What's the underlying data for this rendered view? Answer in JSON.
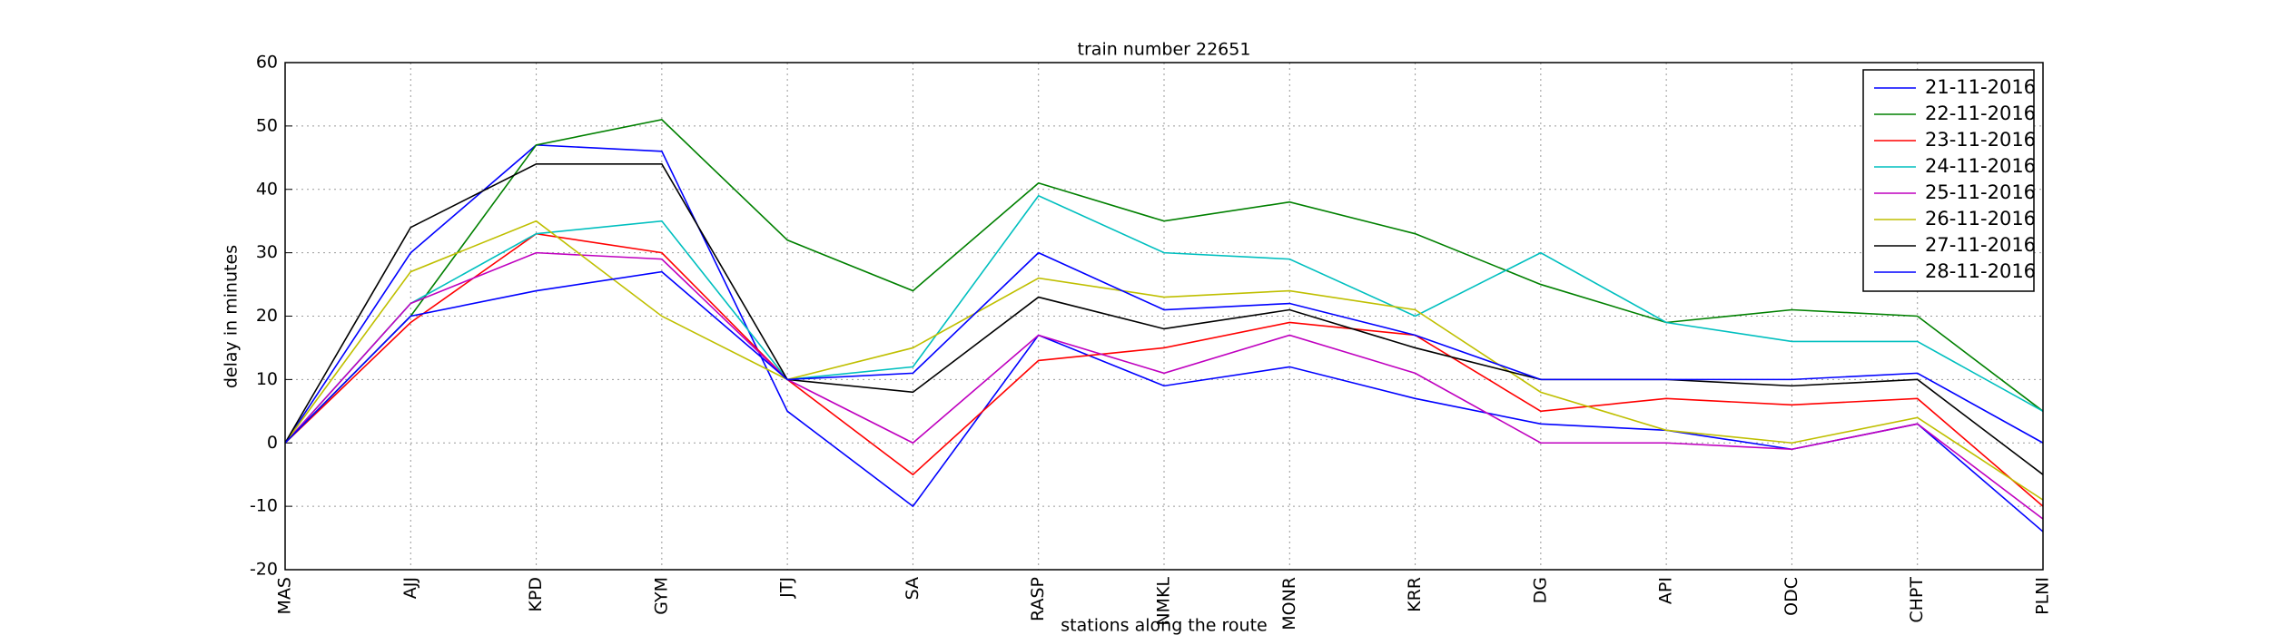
{
  "chart_data": {
    "type": "line",
    "title": "train number 22651",
    "xlabel": "stations along the route",
    "ylabel": "delay in minutes",
    "categories": [
      "MAS",
      "AJJ",
      "KPD",
      "GYM",
      "JTJ",
      "SA",
      "RASP",
      "NMKL",
      "MONR",
      "KRR",
      "DG",
      "API",
      "ODC",
      "CHPT",
      "PLNI"
    ],
    "ylim": [
      -20,
      60
    ],
    "yticks": [
      -20,
      -10,
      0,
      10,
      20,
      30,
      40,
      50,
      60
    ],
    "grid": true,
    "legend": "upper right",
    "series": [
      {
        "name": "21-11-2016",
        "color": "#0000ff",
        "values": [
          0,
          30,
          47,
          46,
          5,
          -10,
          17,
          9,
          12,
          7,
          3,
          2,
          -1,
          3,
          -14
        ]
      },
      {
        "name": "22-11-2016",
        "color": "#008000",
        "values": [
          0,
          20,
          47,
          51,
          32,
          24,
          41,
          35,
          38,
          33,
          25,
          19,
          21,
          20,
          5
        ]
      },
      {
        "name": "23-11-2016",
        "color": "#ff0000",
        "values": [
          0,
          19,
          33,
          30,
          10,
          -5,
          13,
          15,
          19,
          17,
          5,
          7,
          6,
          7,
          -10
        ]
      },
      {
        "name": "24-11-2016",
        "color": "#00bfbf",
        "values": [
          0,
          22,
          33,
          35,
          10,
          12,
          39,
          30,
          29,
          20,
          30,
          19,
          16,
          16,
          5
        ]
      },
      {
        "name": "25-11-2016",
        "color": "#bf00bf",
        "values": [
          0,
          22,
          30,
          29,
          10,
          0,
          17,
          11,
          17,
          11,
          0,
          0,
          -1,
          3,
          -12
        ]
      },
      {
        "name": "26-11-2016",
        "color": "#bfbf00",
        "values": [
          0,
          27,
          35,
          20,
          10,
          15,
          26,
          23,
          24,
          21,
          8,
          2,
          0,
          4,
          -9
        ]
      },
      {
        "name": "27-11-2016",
        "color": "#000000",
        "values": [
          0,
          34,
          44,
          44,
          10,
          8,
          23,
          18,
          21,
          15,
          10,
          10,
          9,
          10,
          -5
        ]
      },
      {
        "name": "28-11-2016",
        "color": "#0000ff",
        "values": [
          0,
          20,
          24,
          27,
          10,
          11,
          30,
          21,
          22,
          17,
          10,
          10,
          10,
          11,
          0
        ]
      }
    ]
  }
}
